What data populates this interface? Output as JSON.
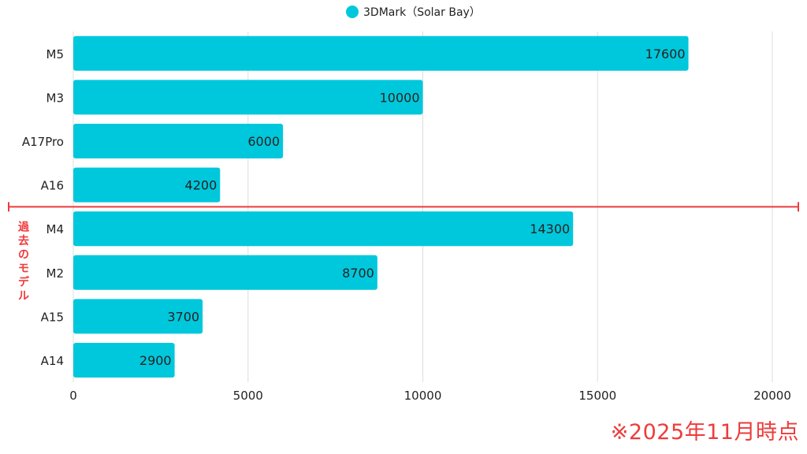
{
  "chart_data": {
    "type": "bar",
    "orientation": "horizontal",
    "categories": [
      "M5",
      "M3",
      "A17Pro",
      "A16",
      "M4",
      "M2",
      "A15",
      "A14"
    ],
    "series": [
      {
        "name": "3DMark（Solar Bay）",
        "values": [
          17600,
          10000,
          6000,
          4200,
          14300,
          8700,
          3700,
          2900
        ]
      }
    ],
    "xlim": [
      0,
      20000
    ],
    "xticks": [
      0,
      5000,
      10000,
      15000,
      20000
    ],
    "grid": true,
    "legend": "top-center",
    "data_labels": true,
    "colors": {
      "bar": "#00c8dc",
      "divider": "#ee3b3b",
      "grid": "#dddddd",
      "text": "#222222"
    }
  },
  "annotation": {
    "divider_after_category": "A16",
    "label": "過去のモデル",
    "label_chars": [
      "過",
      "去",
      "の",
      "モ",
      "デ",
      "ル"
    ]
  },
  "footnote": "※2025年11月時点"
}
